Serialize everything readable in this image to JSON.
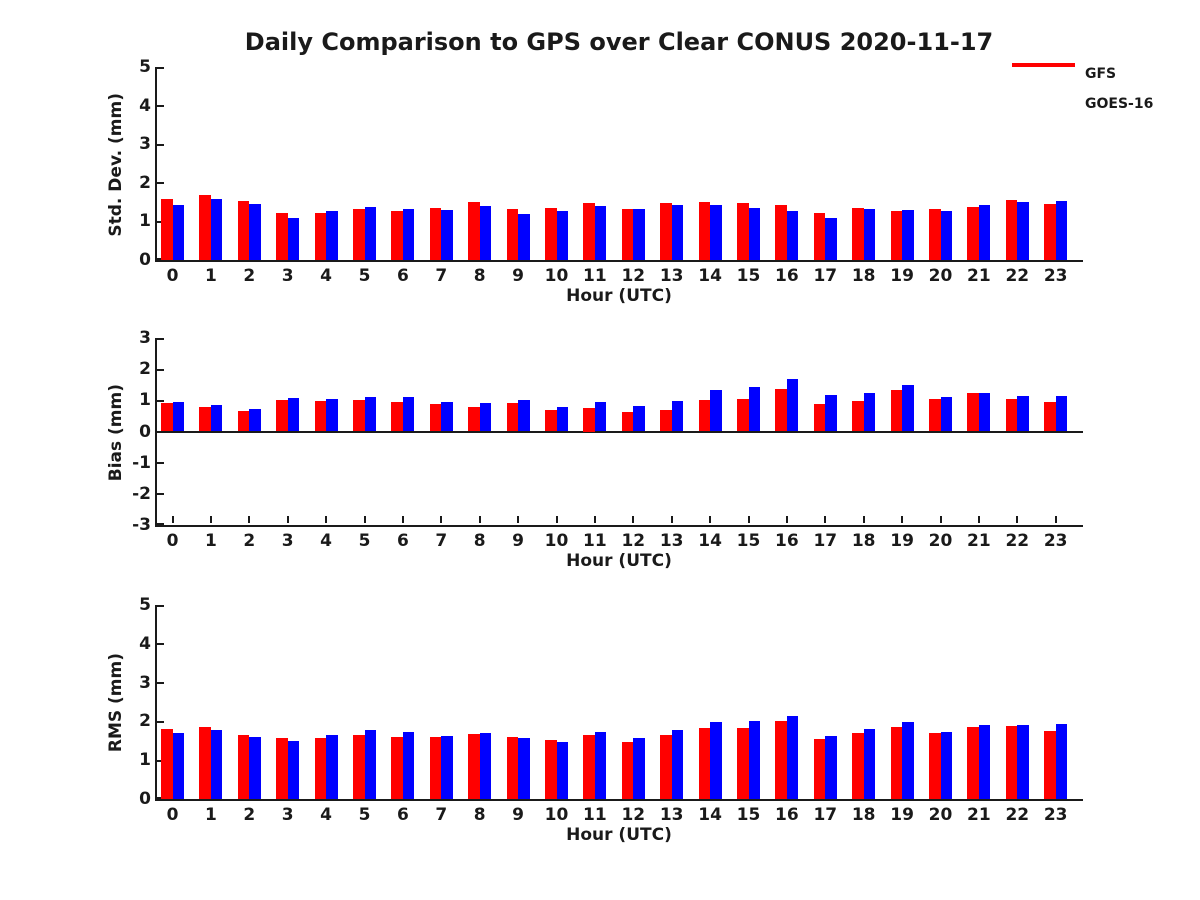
{
  "title": "Daily Comparison to GPS over Clear CONUS 2020-11-17",
  "legend": {
    "items": [
      {
        "label": "GFS",
        "color": "#ff0000"
      },
      {
        "label": "GOES-16",
        "color": "#0000ff"
      }
    ]
  },
  "colors": {
    "gfs": "#ff0000",
    "goes16": "#0000ff",
    "axis": "#1a1a1a",
    "background": "#ffffff"
  },
  "chart_data": [
    {
      "type": "bar",
      "title": "Daily Comparison to GPS over Clear CONUS 2020-11-17",
      "ylabel": "Std. Dev. (mm)",
      "xlabel": "Hour (UTC)",
      "ylim": [
        0,
        5
      ],
      "yticks": [
        0,
        1,
        2,
        3,
        4,
        5
      ],
      "grid": false,
      "legend_position": "top-right",
      "categories": [
        "0",
        "1",
        "2",
        "3",
        "4",
        "5",
        "6",
        "7",
        "8",
        "9",
        "10",
        "11",
        "12",
        "13",
        "14",
        "15",
        "16",
        "17",
        "18",
        "19",
        "20",
        "21",
        "22",
        "23"
      ],
      "series": [
        {
          "name": "GFS",
          "color": "#ff0000",
          "values": [
            1.57,
            1.68,
            1.53,
            1.22,
            1.22,
            1.33,
            1.26,
            1.35,
            1.49,
            1.33,
            1.35,
            1.47,
            1.33,
            1.47,
            1.5,
            1.47,
            1.42,
            1.23,
            1.34,
            1.27,
            1.32,
            1.38,
            1.55,
            1.44
          ]
        },
        {
          "name": "GOES-16",
          "color": "#0000ff",
          "values": [
            1.42,
            1.57,
            1.45,
            1.1,
            1.28,
            1.38,
            1.33,
            1.3,
            1.4,
            1.18,
            1.27,
            1.41,
            1.33,
            1.43,
            1.42,
            1.36,
            1.26,
            1.09,
            1.32,
            1.3,
            1.27,
            1.42,
            1.49,
            1.53
          ]
        }
      ]
    },
    {
      "type": "bar",
      "ylabel": "Bias (mm)",
      "xlabel": "Hour (UTC)",
      "ylim": [
        -3,
        3
      ],
      "yticks": [
        -3,
        -2,
        -1,
        0,
        1,
        2,
        3
      ],
      "grid": false,
      "categories": [
        "0",
        "1",
        "2",
        "3",
        "4",
        "5",
        "6",
        "7",
        "8",
        "9",
        "10",
        "11",
        "12",
        "13",
        "14",
        "15",
        "16",
        "17",
        "18",
        "19",
        "20",
        "21",
        "22",
        "23"
      ],
      "series": [
        {
          "name": "GFS",
          "color": "#ff0000",
          "values": [
            0.91,
            0.8,
            0.67,
            1.0,
            0.97,
            1.02,
            0.95,
            0.87,
            0.8,
            0.9,
            0.69,
            0.75,
            0.61,
            0.7,
            1.01,
            1.04,
            1.35,
            0.89,
            0.99,
            1.33,
            1.03,
            1.23,
            1.04,
            0.94
          ]
        },
        {
          "name": "GOES-16",
          "color": "#0000ff",
          "values": [
            0.95,
            0.85,
            0.71,
            1.06,
            1.05,
            1.12,
            1.12,
            0.96,
            0.9,
            1.0,
            0.79,
            0.94,
            0.83,
            0.97,
            1.34,
            1.42,
            1.69,
            1.18,
            1.22,
            1.48,
            1.12,
            1.23,
            1.14,
            1.14
          ]
        }
      ]
    },
    {
      "type": "bar",
      "ylabel": "RMS (mm)",
      "xlabel": "Hour (UTC)",
      "ylim": [
        0,
        5
      ],
      "yticks": [
        0,
        1,
        2,
        3,
        4,
        5
      ],
      "grid": false,
      "categories": [
        "0",
        "1",
        "2",
        "3",
        "4",
        "5",
        "6",
        "7",
        "8",
        "9",
        "10",
        "11",
        "12",
        "13",
        "14",
        "15",
        "16",
        "17",
        "18",
        "19",
        "20",
        "21",
        "22",
        "23"
      ],
      "series": [
        {
          "name": "GFS",
          "color": "#ff0000",
          "values": [
            1.81,
            1.86,
            1.66,
            1.58,
            1.56,
            1.65,
            1.59,
            1.59,
            1.68,
            1.59,
            1.51,
            1.66,
            1.47,
            1.64,
            1.83,
            1.82,
            2.01,
            1.54,
            1.69,
            1.85,
            1.69,
            1.86,
            1.87,
            1.76
          ]
        },
        {
          "name": "GOES-16",
          "color": "#0000ff",
          "values": [
            1.69,
            1.78,
            1.61,
            1.5,
            1.64,
            1.78,
            1.73,
            1.63,
            1.69,
            1.57,
            1.47,
            1.72,
            1.57,
            1.77,
            1.98,
            2.01,
            2.14,
            1.63,
            1.8,
            1.99,
            1.73,
            1.9,
            1.91,
            1.93
          ]
        }
      ]
    }
  ]
}
